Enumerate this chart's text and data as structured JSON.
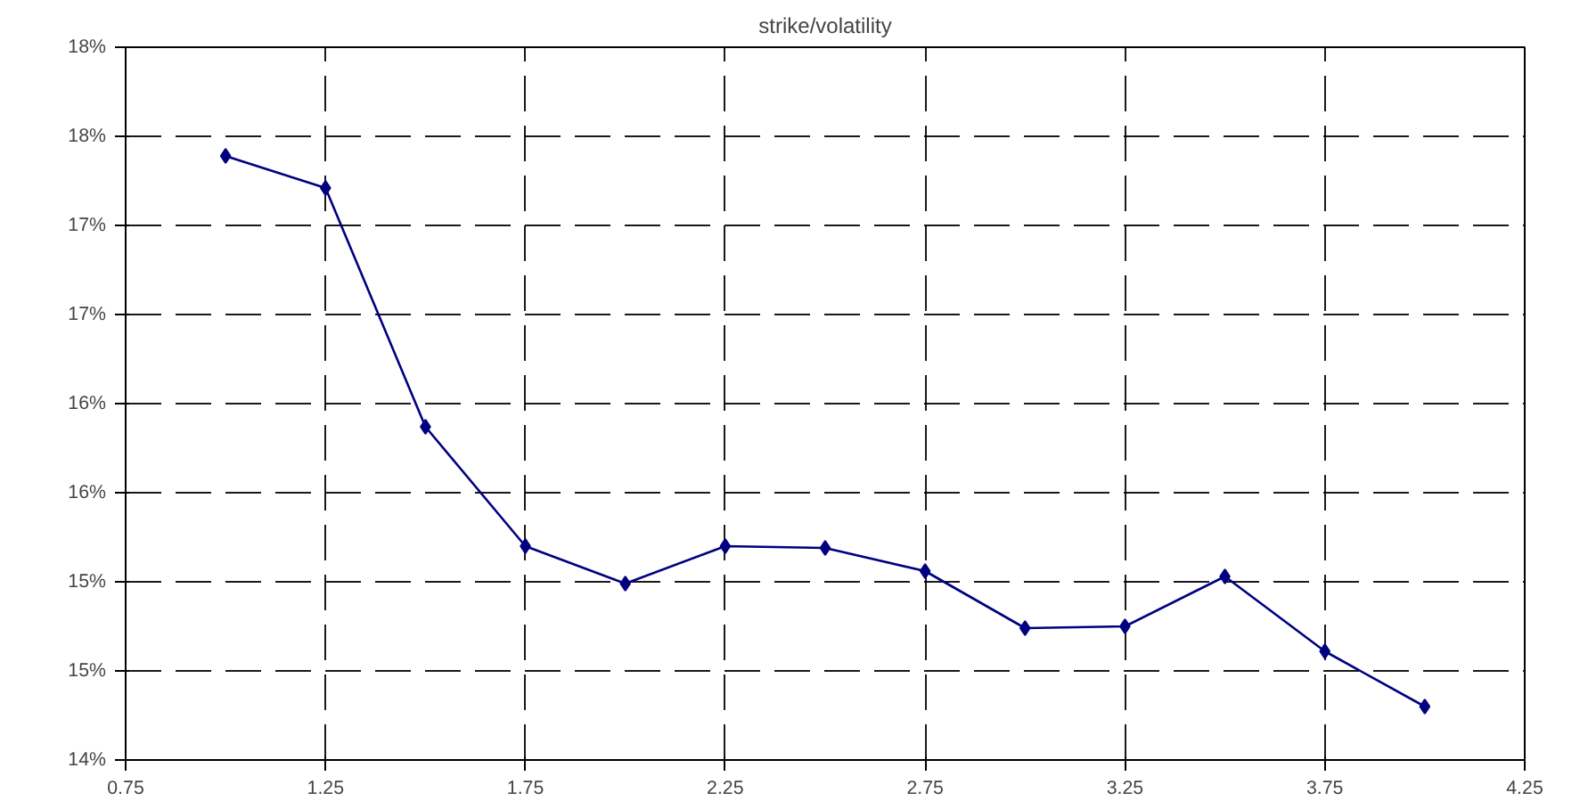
{
  "chart_data": {
    "type": "line",
    "title": "strike/volatility",
    "x": [
      1.0,
      1.25,
      1.5,
      1.75,
      2.0,
      2.25,
      2.5,
      2.75,
      3.0,
      3.25,
      3.5,
      3.75,
      4.0
    ],
    "series": [
      {
        "color": "#000080",
        "values": [
          17.39,
          17.21,
          15.87,
          15.2,
          14.99,
          15.2,
          15.19,
          15.06,
          14.74,
          14.75,
          15.03,
          14.61,
          14.3
        ]
      }
    ],
    "xlim": [
      0.75,
      4.25
    ],
    "xticks": [
      0.75,
      1.25,
      1.75,
      2.25,
      2.75,
      3.25,
      3.75,
      4.25
    ],
    "ylim": [
      14,
      18
    ],
    "yticks": [
      {
        "value": 14,
        "label": "14%"
      },
      {
        "value": 14.5,
        "label": "15%"
      },
      {
        "value": 15,
        "label": "15%"
      },
      {
        "value": 15.5,
        "label": "16%"
      },
      {
        "value": 16,
        "label": "16%"
      },
      {
        "value": 16.5,
        "label": "17%"
      },
      {
        "value": 17,
        "label": "17%"
      },
      {
        "value": 17.5,
        "label": "18%"
      },
      {
        "value": 18,
        "label": "18%"
      }
    ],
    "grid": true,
    "marker": "diamond",
    "line_style": "solid"
  }
}
